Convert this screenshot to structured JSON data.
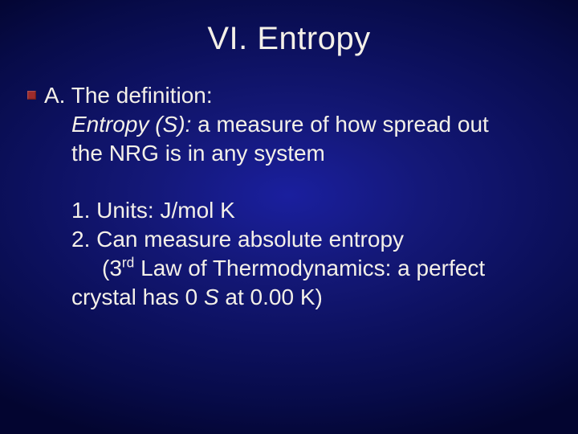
{
  "colors": {
    "background_center": "#1a1f9e",
    "background_edge": "#030530",
    "text": "#f4f0e8",
    "bullet": "#9c2b2b"
  },
  "typography": {
    "title_fontsize": 40,
    "body_fontsize": 28,
    "font_family": "Arial"
  },
  "title": "VI. Entropy",
  "section_a": {
    "label": "A.  The definition:",
    "term_prefix": "Entropy",
    "term_symbol": "(S):",
    "def_rest": " a measure of how spread out",
    "def_line2": "the NRG is in any system"
  },
  "items": {
    "one": "1.  Units: J/mol K",
    "two": "2.  Can measure absolute entropy",
    "law_prefix": "(3",
    "law_sup": "rd",
    "law_mid": " Law of Thermodynamics: a perfect",
    "law_line2_a": "crystal has 0 ",
    "law_line2_sym": "S",
    "law_line2_b": " at 0.00 K)"
  }
}
